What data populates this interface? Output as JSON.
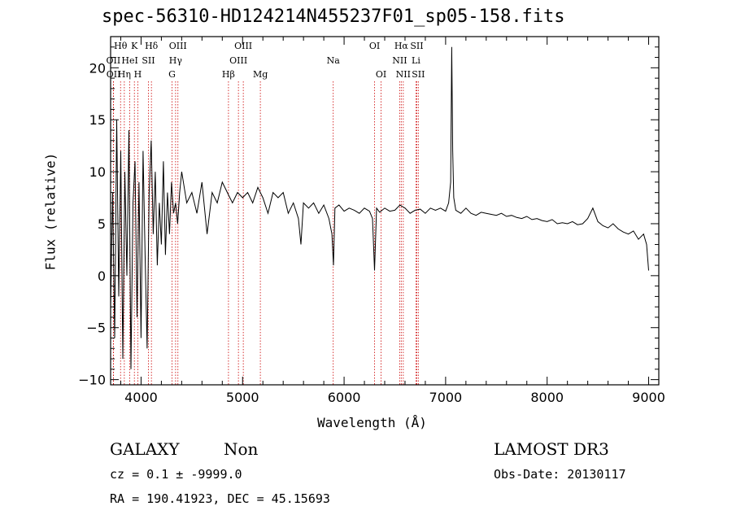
{
  "header": {
    "title": "spec-56310-HD124214N455237F01_sp05-158.fits"
  },
  "info": {
    "class": "GALAXY",
    "subclass": "Non",
    "cz": "cz = 0.1 ± -9999.0",
    "radec": "RA = 190.41923, DEC =  45.15693",
    "survey": "LAMOST DR3",
    "obsdate": "Obs-Date: 20130117"
  },
  "chart_data": {
    "type": "line",
    "title": "spec-56310-HD124214N455237F01_sp05-158.fits",
    "xlabel": "Wavelength (Å)",
    "ylabel": "Flux (relative)",
    "xlim": [
      3700,
      9100
    ],
    "ylim": [
      -10.5,
      23
    ],
    "xticks": [
      4000,
      5000,
      6000,
      7000,
      8000,
      9000
    ],
    "yticks": [
      -10,
      -5,
      0,
      5,
      10,
      15,
      20
    ],
    "grid": false,
    "series": [
      {
        "name": "flux",
        "x": [
          3700,
          3720,
          3740,
          3760,
          3780,
          3800,
          3820,
          3840,
          3860,
          3880,
          3900,
          3920,
          3940,
          3960,
          3980,
          4000,
          4020,
          4040,
          4060,
          4080,
          4100,
          4120,
          4140,
          4160,
          4180,
          4200,
          4220,
          4240,
          4260,
          4280,
          4300,
          4320,
          4340,
          4360,
          4380,
          4400,
          4450,
          4500,
          4550,
          4600,
          4650,
          4700,
          4750,
          4800,
          4850,
          4900,
          4950,
          5000,
          5050,
          5100,
          5150,
          5200,
          5250,
          5300,
          5350,
          5400,
          5450,
          5500,
          5550,
          5575,
          5600,
          5650,
          5700,
          5750,
          5800,
          5850,
          5880,
          5895,
          5910,
          5950,
          6000,
          6050,
          6100,
          6150,
          6200,
          6250,
          6280,
          6300,
          6320,
          6350,
          6400,
          6450,
          6500,
          6550,
          6600,
          6650,
          6700,
          6750,
          6800,
          6850,
          6900,
          6950,
          7000,
          7030,
          7050,
          7060,
          7070,
          7080,
          7100,
          7150,
          7200,
          7250,
          7300,
          7350,
          7400,
          7450,
          7500,
          7550,
          7600,
          7650,
          7700,
          7750,
          7800,
          7850,
          7900,
          7950,
          8000,
          8050,
          8100,
          8150,
          8200,
          8250,
          8300,
          8350,
          8400,
          8450,
          8500,
          8550,
          8600,
          8650,
          8700,
          8750,
          8800,
          8850,
          8900,
          8950,
          8980,
          9000
        ],
        "values": [
          -3,
          8,
          -6,
          15,
          -2,
          12,
          -8,
          10,
          0,
          14,
          -9,
          7,
          11,
          -4,
          9,
          -6,
          12,
          2,
          -7,
          8,
          13,
          4,
          10,
          1,
          7,
          3,
          11,
          2,
          8,
          4,
          9,
          6,
          7,
          5,
          8,
          10,
          7,
          8,
          6,
          9,
          4,
          8,
          7,
          9,
          8,
          7,
          8,
          7.5,
          8,
          7,
          8.5,
          7.5,
          6,
          8,
          7.5,
          8,
          6,
          7,
          5.5,
          3,
          7,
          6.5,
          7,
          6,
          6.8,
          5.5,
          4,
          1,
          6.5,
          6.8,
          6.2,
          6.5,
          6.3,
          6,
          6.5,
          6.2,
          5.5,
          0.5,
          6.5,
          6.1,
          6.5,
          6.2,
          6.3,
          6.8,
          6.5,
          6,
          6.3,
          6.4,
          6,
          6.5,
          6.3,
          6.5,
          6.2,
          7,
          9,
          22,
          12,
          7.5,
          6.3,
          6,
          6.5,
          6,
          5.8,
          6.1,
          6,
          5.9,
          5.8,
          6,
          5.7,
          5.8,
          5.6,
          5.5,
          5.7,
          5.4,
          5.5,
          5.3,
          5.2,
          5.4,
          5,
          5.1,
          5,
          5.2,
          4.9,
          5,
          5.5,
          6.5,
          5.2,
          4.8,
          4.6,
          5,
          4.5,
          4.2,
          4,
          4.3,
          3.5,
          4,
          3,
          0.5
        ]
      }
    ],
    "line_markers": [
      {
        "label": "OII",
        "wavelength": 3727,
        "row": 2
      },
      {
        "label": "OII",
        "wavelength": 3729,
        "row": 3
      },
      {
        "label": "Hθ",
        "wavelength": 3798,
        "row": 1
      },
      {
        "label": "Hη",
        "wavelength": 3835,
        "row": 3
      },
      {
        "label": "HeI",
        "wavelength": 3889,
        "row": 2
      },
      {
        "label": "K",
        "wavelength": 3934,
        "row": 1
      },
      {
        "label": "H",
        "wavelength": 3968,
        "row": 3
      },
      {
        "label": "Hδ",
        "wavelength": 4102,
        "row": 1
      },
      {
        "label": "SII",
        "wavelength": 4072,
        "row": 2
      },
      {
        "label": "OIII",
        "wavelength": 4363,
        "row": 1
      },
      {
        "label": "Hγ",
        "wavelength": 4340,
        "row": 2
      },
      {
        "label": "G",
        "wavelength": 4305,
        "row": 3
      },
      {
        "label": "OIII",
        "wavelength": 5007,
        "row": 1
      },
      {
        "label": "OIII",
        "wavelength": 4959,
        "row": 2
      },
      {
        "label": "Hβ",
        "wavelength": 4861,
        "row": 3
      },
      {
        "label": "Mg",
        "wavelength": 5175,
        "row": 3
      },
      {
        "label": "Na",
        "wavelength": 5893,
        "row": 2
      },
      {
        "label": "OI",
        "wavelength": 6300,
        "row": 1
      },
      {
        "label": "OI",
        "wavelength": 6364,
        "row": 3
      },
      {
        "label": "Hα",
        "wavelength": 6563,
        "row": 1
      },
      {
        "label": "NII",
        "wavelength": 6548,
        "row": 2
      },
      {
        "label": "NII",
        "wavelength": 6583,
        "row": 3
      },
      {
        "label": "SII",
        "wavelength": 6716,
        "row": 1
      },
      {
        "label": "Li",
        "wavelength": 6708,
        "row": 2
      },
      {
        "label": "SII",
        "wavelength": 6731,
        "row": 3
      }
    ]
  }
}
